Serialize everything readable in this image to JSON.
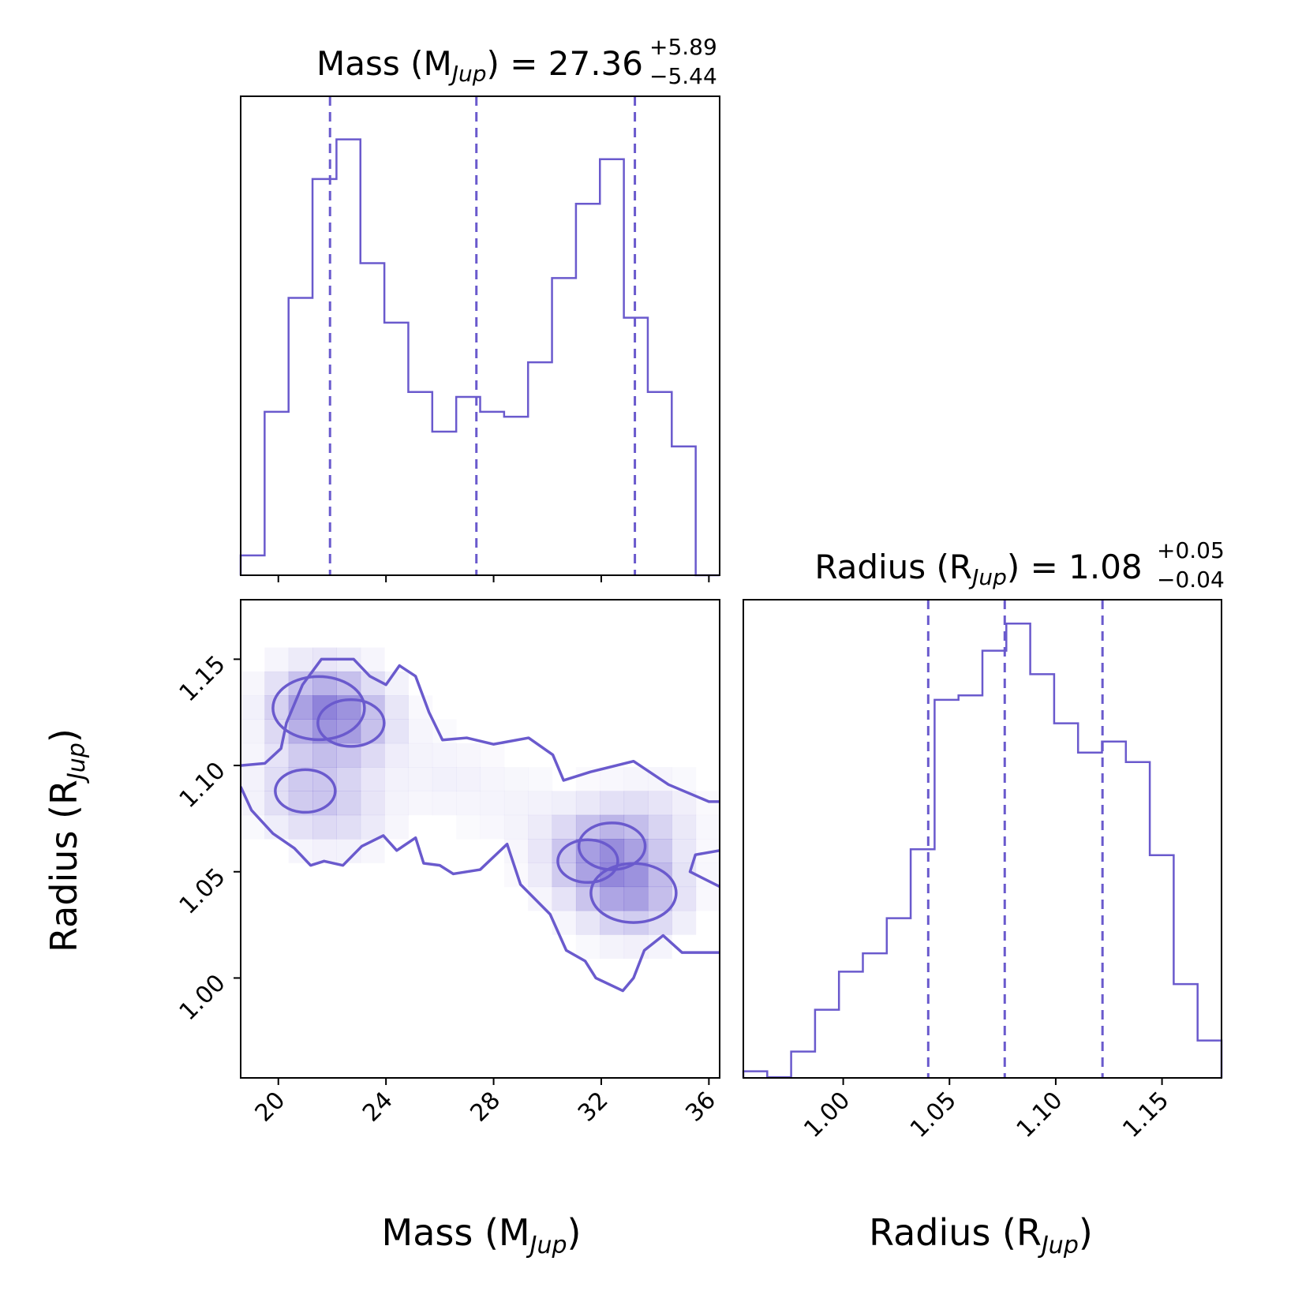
{
  "colors": {
    "accent": "#6a5acd",
    "frame": "#000000",
    "background": "#ffffff"
  },
  "titles": {
    "mass": {
      "prefix": "Mass (M",
      "sub": "Jup",
      "suffix": ") = 27.36",
      "sup": "+5.89",
      "inf": "−5.44"
    },
    "radius": {
      "prefix": "Radius (R",
      "sub": "Jup",
      "suffix": ") = 1.08",
      "sup": "+0.05",
      "inf": "−0.04"
    }
  },
  "axis_labels": {
    "x_mass": {
      "prefix": "Mass (M",
      "sub": "Jup",
      "suffix": ")"
    },
    "x_radius": {
      "prefix": "Radius (R",
      "sub": "Jup",
      "suffix": ")"
    },
    "y_radius": {
      "prefix": "Radius (R",
      "sub": "Jup",
      "suffix": ")"
    }
  },
  "chart_data": [
    {
      "type": "histogram",
      "name": "mass-marginal",
      "title": "Mass (MJup) = 27.36 +5.89 -5.44",
      "xlim": [
        18.6,
        36.4
      ],
      "bin_edges": [
        18.6,
        19.49,
        20.38,
        21.27,
        22.16,
        23.05,
        23.94,
        24.83,
        25.72,
        26.61,
        27.5,
        28.39,
        29.28,
        30.17,
        31.06,
        31.95,
        32.84,
        33.73,
        34.62,
        35.51,
        36.4
      ],
      "counts": [
        0.04,
        0.33,
        0.56,
        0.8,
        0.88,
        0.63,
        0.51,
        0.37,
        0.29,
        0.36,
        0.33,
        0.32,
        0.43,
        0.6,
        0.75,
        0.84,
        0.52,
        0.37,
        0.26,
        0.0
      ],
      "quantiles": [
        21.92,
        27.36,
        33.25
      ],
      "xticks": [
        20,
        24,
        28,
        32,
        36
      ]
    },
    {
      "type": "heatmap",
      "name": "mass-radius-2d",
      "xlabel": "Mass (MJup)",
      "ylabel": "Radius (RJup)",
      "xlim": [
        18.6,
        36.4
      ],
      "ylim": [
        0.953,
        1.178
      ],
      "xticks": [
        20,
        24,
        28,
        32,
        36
      ],
      "yticks": [
        1.0,
        1.05,
        1.1,
        1.15
      ],
      "density_peaks": [
        {
          "mass": 21.5,
          "radius": 1.127,
          "level": 1.0
        },
        {
          "mass": 22.7,
          "radius": 1.12,
          "level": 0.6
        },
        {
          "mass": 21.0,
          "radius": 1.088,
          "level": 0.5
        },
        {
          "mass": 22.5,
          "radius": 1.078,
          "level": 0.3
        },
        {
          "mass": 33.2,
          "radius": 1.04,
          "level": 0.9
        },
        {
          "mass": 32.4,
          "radius": 1.062,
          "level": 0.6
        },
        {
          "mass": 31.5,
          "radius": 1.055,
          "level": 0.5
        },
        {
          "mass": 34.0,
          "radius": 1.075,
          "level": 0.25
        },
        {
          "mass": 26.3,
          "radius": 1.095,
          "level": 0.15
        },
        {
          "mass": 29.0,
          "radius": 1.08,
          "level": 0.12
        }
      ],
      "contours": [
        [
          [
            18.6,
            1.1
          ],
          [
            19.5,
            1.101
          ],
          [
            20.1,
            1.108
          ],
          [
            20.3,
            1.12
          ],
          [
            20.9,
            1.138
          ],
          [
            21.6,
            1.15
          ],
          [
            22.8,
            1.15
          ],
          [
            23.4,
            1.142
          ],
          [
            24.0,
            1.138
          ],
          [
            24.5,
            1.147
          ],
          [
            25.1,
            1.142
          ],
          [
            25.6,
            1.125
          ],
          [
            26.1,
            1.112
          ],
          [
            27.0,
            1.113
          ],
          [
            28.0,
            1.11
          ],
          [
            29.3,
            1.113
          ],
          [
            30.2,
            1.105
          ],
          [
            30.6,
            1.093
          ],
          [
            31.6,
            1.097
          ],
          [
            33.2,
            1.102
          ],
          [
            34.5,
            1.091
          ],
          [
            36.0,
            1.083
          ],
          [
            36.4,
            1.083
          ]
        ],
        [
          [
            36.4,
            1.06
          ],
          [
            35.5,
            1.058
          ],
          [
            35.3,
            1.05
          ],
          [
            36.4,
            1.043
          ]
        ],
        [
          [
            36.4,
            1.012
          ],
          [
            35.0,
            1.012
          ],
          [
            34.3,
            1.02
          ],
          [
            33.6,
            1.013
          ],
          [
            33.2,
            1.0
          ],
          [
            32.8,
            0.994
          ],
          [
            31.8,
            1.0
          ],
          [
            31.4,
            1.008
          ],
          [
            30.7,
            1.013
          ],
          [
            30.1,
            1.03
          ],
          [
            29.0,
            1.044
          ],
          [
            28.5,
            1.063
          ],
          [
            27.5,
            1.051
          ],
          [
            26.5,
            1.049
          ],
          [
            26.0,
            1.053
          ],
          [
            25.4,
            1.054
          ],
          [
            25.1,
            1.066
          ],
          [
            24.4,
            1.06
          ],
          [
            23.9,
            1.067
          ],
          [
            23.1,
            1.062
          ],
          [
            22.4,
            1.053
          ],
          [
            21.7,
            1.055
          ],
          [
            21.2,
            1.053
          ],
          [
            20.6,
            1.061
          ],
          [
            19.8,
            1.068
          ],
          [
            19.0,
            1.079
          ],
          [
            18.6,
            1.09
          ]
        ]
      ]
    },
    {
      "type": "histogram",
      "name": "radius-marginal",
      "title": "Radius (RJup) = 1.08 +0.05 -0.04",
      "xlabel": "Radius (RJup)",
      "xlim": [
        0.953,
        1.178
      ],
      "bin_edges": [
        0.953,
        0.96425,
        0.9755,
        0.98675,
        0.998,
        1.00925,
        1.0205,
        1.03175,
        1.043,
        1.05425,
        1.0655,
        1.07675,
        1.088,
        1.09925,
        1.1105,
        1.12175,
        1.133,
        1.14425,
        1.1555,
        1.16675,
        1.178
      ],
      "counts": [
        0.009,
        0.001,
        0.036,
        0.093,
        0.145,
        0.17,
        0.218,
        0.312,
        0.516,
        0.522,
        0.583,
        0.62,
        0.551,
        0.484,
        0.444,
        0.459,
        0.431,
        0.304,
        0.128,
        0.051
      ],
      "quantiles": [
        1.04,
        1.076,
        1.122
      ],
      "xticks": [
        1.0,
        1.05,
        1.1,
        1.15
      ]
    }
  ]
}
